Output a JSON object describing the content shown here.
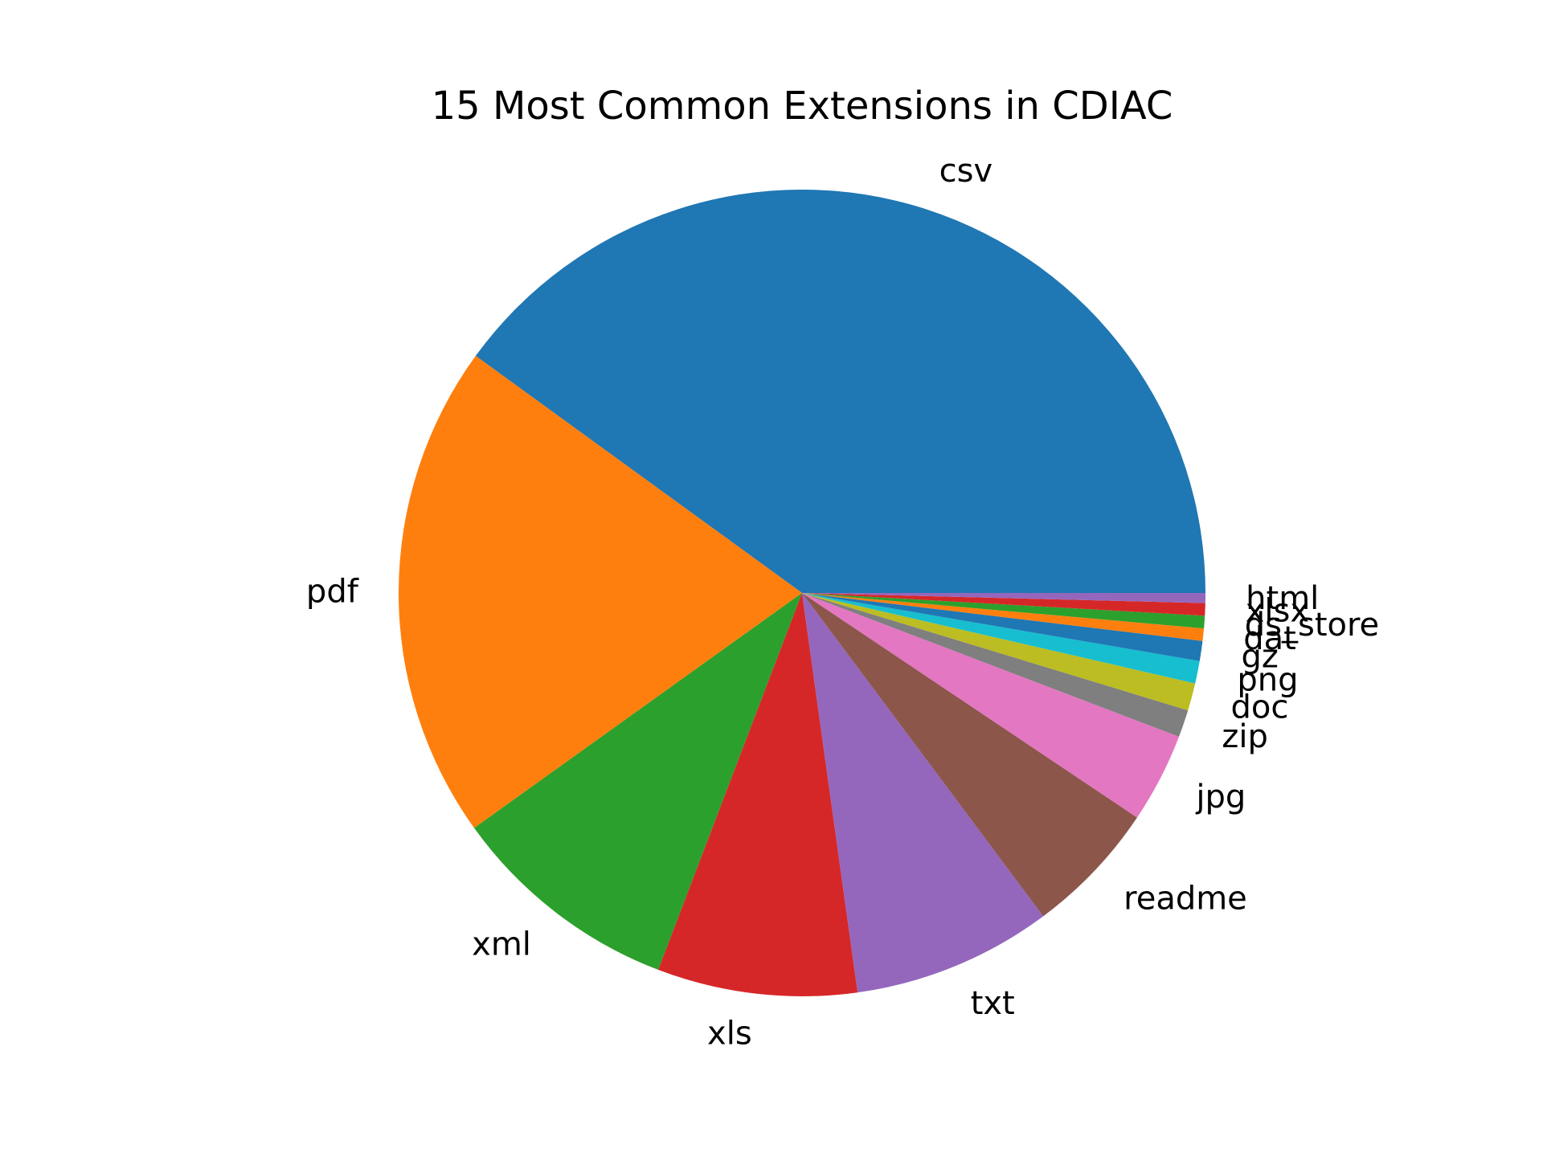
{
  "chart_data": {
    "type": "pie",
    "title": "15 Most Common Extensions in CDIAC",
    "start_angle_deg": 0,
    "direction": "counterclockwise",
    "slices": [
      {
        "label": "csv",
        "value": 40.0,
        "color": "#1f77b4"
      },
      {
        "label": "pdf",
        "value": 19.9,
        "color": "#ff7f0e"
      },
      {
        "label": "xml",
        "value": 9.3,
        "color": "#2ca02c"
      },
      {
        "label": "xls",
        "value": 8.0,
        "color": "#d62728"
      },
      {
        "label": "txt",
        "value": 8.0,
        "color": "#9467bd"
      },
      {
        "label": "readme",
        "value": 5.4,
        "color": "#8c564b"
      },
      {
        "label": "jpg",
        "value": 3.6,
        "color": "#e377c2"
      },
      {
        "label": "zip",
        "value": 1.1,
        "color": "#7f7f7f"
      },
      {
        "label": "doc",
        "value": 1.1,
        "color": "#bcbd22"
      },
      {
        "label": "png",
        "value": 0.9,
        "color": "#17becf"
      },
      {
        "label": "gz",
        "value": 0.8,
        "color": "#1f77b4"
      },
      {
        "label": "dat",
        "value": 0.5,
        "color": "#ff7f0e"
      },
      {
        "label": "ds_store",
        "value": 0.5,
        "color": "#2ca02c"
      },
      {
        "label": "xlsx",
        "value": 0.5,
        "color": "#d62728"
      },
      {
        "label": "html",
        "value": 0.4,
        "color": "#9467bd"
      }
    ]
  }
}
